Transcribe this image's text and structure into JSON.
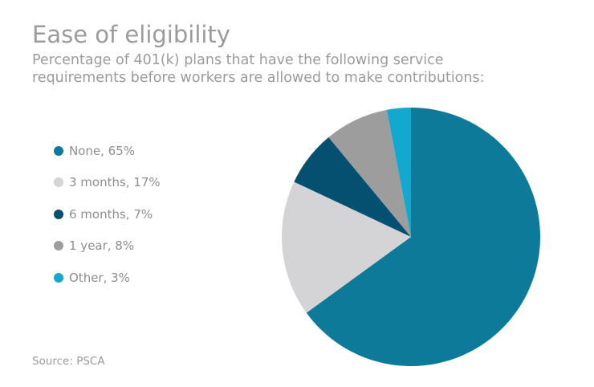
{
  "header": {
    "title": "Ease of eligibility",
    "subtitle_line1": "Percentage of 401(k) plans that have the following service",
    "subtitle_line2": "requirements before workers are allowed to make contributions:"
  },
  "legend": [
    {
      "label": "None, 65%",
      "color": "#0e7a9a"
    },
    {
      "label": "3 months, 17%",
      "color": "#d4d3d5"
    },
    {
      "label": "6 months, 7%",
      "color": "#045071"
    },
    {
      "label": "1 year, 8%",
      "color": "#9d9d9d"
    },
    {
      "label": "Other, 3%",
      "color": "#12a8cf"
    }
  ],
  "footer": {
    "source": "Source: PSCA"
  },
  "chart_data": {
    "type": "pie",
    "title": "Ease of eligibility",
    "subtitle": "Percentage of 401(k) plans that have the following service requirements before workers are allowed to make contributions:",
    "categories": [
      "None",
      "3 months",
      "6 months",
      "1 year",
      "Other"
    ],
    "values": [
      65,
      17,
      7,
      8,
      3
    ],
    "unit": "%",
    "colors": [
      "#0e7a9a",
      "#d4d3d5",
      "#045071",
      "#9d9d9d",
      "#12a8cf"
    ],
    "start": "12 o'clock",
    "direction": "clockwise",
    "legend_position": "left",
    "source": "Source: PSCA"
  }
}
